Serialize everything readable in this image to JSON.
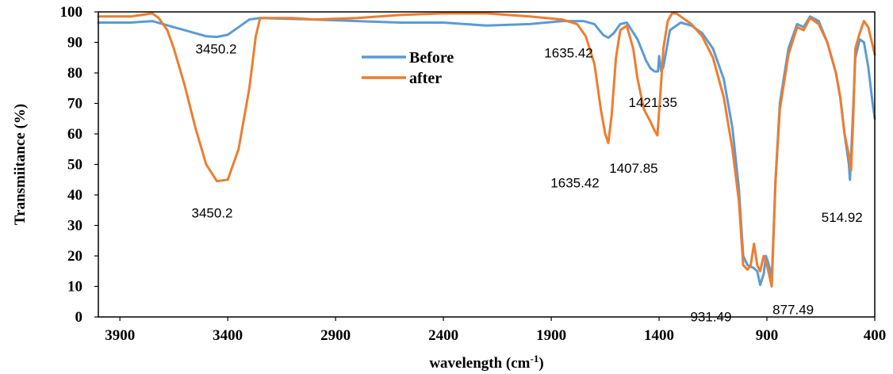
{
  "chart_data": {
    "type": "line",
    "title": "",
    "xlabel_main": "wavelength (cm",
    "xlabel_sup": "-1",
    "xlabel_end": ")",
    "ylabel": "Transmiitance (%)",
    "xlim": [
      4000,
      400
    ],
    "ylim": [
      0,
      100
    ],
    "x_ticks": [
      3900,
      3400,
      2900,
      2400,
      1900,
      1400,
      900,
      400
    ],
    "y_ticks": [
      0,
      10,
      20,
      30,
      40,
      50,
      60,
      70,
      80,
      90,
      100
    ],
    "grid": false,
    "legend_position": "top-center",
    "series": [
      {
        "name": "Before",
        "color": "#5b9bd5",
        "x": [
          4000,
          3850,
          3750,
          3700,
          3650,
          3600,
          3550,
          3500,
          3450.2,
          3400,
          3350,
          3300,
          3250,
          3000,
          2800,
          2600,
          2400,
          2200,
          2000,
          1850,
          1750,
          1700,
          1660,
          1635.42,
          1610,
          1580,
          1550,
          1500,
          1460,
          1440,
          1421.35,
          1405,
          1400,
          1390,
          1380,
          1350,
          1300,
          1250,
          1200,
          1150,
          1100,
          1060,
          1030,
          1010,
          990,
          960,
          945,
          931.49,
          915,
          905,
          895,
          880,
          877.49,
          860,
          840,
          800,
          760,
          730,
          700,
          660,
          620,
          580,
          560,
          540,
          520,
          514.92,
          505,
          490,
          470,
          450,
          430,
          410,
          400
        ],
        "y": [
          96.5,
          96.5,
          97,
          96,
          95,
          94,
          93,
          92,
          91.8,
          92.5,
          95,
          97.5,
          98,
          97.5,
          97,
          96.5,
          96.5,
          95.5,
          96,
          97,
          97,
          96,
          92.5,
          91.5,
          93,
          96,
          96.5,
          91,
          84,
          81.5,
          80.5,
          80.5,
          85.5,
          80.5,
          82,
          94,
          96.5,
          95.5,
          93,
          88,
          78,
          62,
          42,
          20,
          17,
          16,
          15,
          10.5,
          14,
          20,
          18,
          14,
          12,
          45,
          70,
          88,
          96,
          95,
          98.5,
          97,
          90,
          80,
          72,
          60,
          50,
          45,
          60,
          85,
          91,
          90,
          82,
          70,
          65
        ]
      },
      {
        "name": "after",
        "color": "#ed7d31",
        "x": [
          4000,
          3850,
          3750,
          3720,
          3680,
          3650,
          3600,
          3550,
          3500,
          3450.2,
          3400,
          3350,
          3300,
          3270,
          3250,
          3100,
          3000,
          2800,
          2600,
          2400,
          2200,
          2000,
          1850,
          1780,
          1740,
          1700,
          1670,
          1650,
          1635.42,
          1620,
          1600,
          1580,
          1550,
          1520,
          1500,
          1470,
          1440,
          1420,
          1407.85,
          1395,
          1380,
          1360,
          1340,
          1320,
          1300,
          1250,
          1200,
          1150,
          1100,
          1060,
          1030,
          1010,
          990,
          975,
          960,
          945,
          931.49,
          915,
          900,
          890,
          877.49,
          860,
          840,
          800,
          760,
          730,
          700,
          660,
          620,
          580,
          560,
          540,
          520,
          510,
          500,
          490,
          470,
          450,
          430,
          410,
          400
        ],
        "y": [
          98.5,
          98.5,
          99.5,
          98,
          94,
          88,
          76,
          62,
          50,
          44.5,
          45,
          55,
          75,
          92,
          98,
          98,
          97.5,
          98,
          99,
          99.5,
          99.5,
          98.5,
          97.5,
          96,
          92,
          83,
          68,
          60,
          57,
          66,
          85,
          94,
          95.5,
          88,
          78,
          68,
          64,
          61,
          59.5,
          72,
          88,
          97,
          99.5,
          99.5,
          98.5,
          96,
          92,
          85,
          72,
          55,
          38,
          17,
          15.5,
          17,
          24,
          17,
          15,
          20,
          17,
          14,
          10,
          45,
          68,
          86,
          95,
          94,
          98,
          96,
          90,
          80,
          72,
          60,
          53,
          48,
          65,
          88,
          93,
          97,
          95,
          89,
          86
        ]
      }
    ],
    "annotations": [
      {
        "text": "3450.2",
        "x": 3450.2,
        "y": 91.8
      },
      {
        "text": "3450.2",
        "x": 3450.2,
        "y": 44.5
      },
      {
        "text": "1635.42",
        "x": 1635.42,
        "y": 91.5
      },
      {
        "text": "1421.35",
        "x": 1421.35,
        "y": 80.5
      },
      {
        "text": "1635.42",
        "x": 1635.42,
        "y": 57
      },
      {
        "text": "1407.85",
        "x": 1407.85,
        "y": 59.5
      },
      {
        "text": "931.49",
        "x": 931.49,
        "y": 10.5
      },
      {
        "text": "877.49",
        "x": 877.49,
        "y": 10
      },
      {
        "text": "514.92",
        "x": 514.92,
        "y": 45
      }
    ]
  }
}
